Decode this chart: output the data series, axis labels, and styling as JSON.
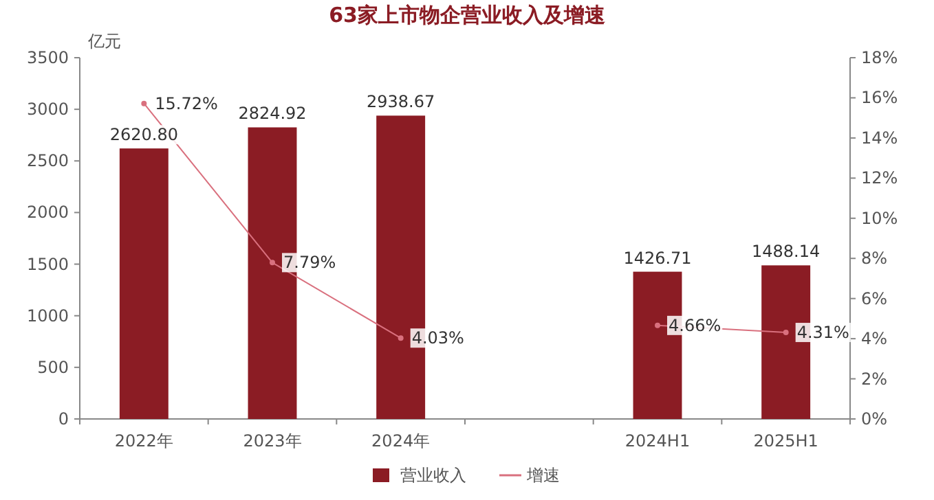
{
  "chart_data": {
    "type": "bar",
    "title": "63家上市物企营业收入及增速",
    "ylabel": "亿元",
    "categories": [
      "2022年",
      "2023年",
      "2024年",
      null,
      "2024H1",
      "2025H1"
    ],
    "series": [
      {
        "name": "营业收入",
        "color": "#8b1c24",
        "values": [
          2620.8,
          2824.92,
          2938.67,
          null,
          1426.71,
          1488.14
        ],
        "value_labels": [
          "2620.80",
          "2824.92",
          "2938.67",
          null,
          "1426.71",
          "1488.14"
        ]
      },
      {
        "name": "增速",
        "type": "line",
        "axis": "y2",
        "color": "#d9707e",
        "marker": "circle",
        "values": [
          15.72,
          7.79,
          4.03,
          null,
          4.66,
          4.31
        ],
        "value_labels": [
          "15.72%",
          "7.79%",
          "4.03%",
          null,
          "4.66%",
          "4.31%"
        ]
      }
    ],
    "ylim": [
      0,
      3500
    ],
    "yticks": [
      0,
      500,
      1000,
      1500,
      2000,
      2500,
      3000,
      3500
    ],
    "y2lim": [
      0,
      18
    ],
    "y2ticks": [
      {
        "value": 0,
        "label": "0%"
      },
      {
        "value": 2,
        "label": "2%"
      },
      {
        "value": 4,
        "label": "4%"
      },
      {
        "value": 6,
        "label": "6%"
      },
      {
        "value": 8,
        "label": "8%"
      },
      {
        "value": 10,
        "label": "10%"
      },
      {
        "value": 12,
        "label": "12%"
      },
      {
        "value": 14,
        "label": "14%"
      },
      {
        "value": 16,
        "label": "16%"
      },
      {
        "value": 18,
        "label": "18%"
      }
    ],
    "grid": false,
    "legend": "bottom"
  }
}
